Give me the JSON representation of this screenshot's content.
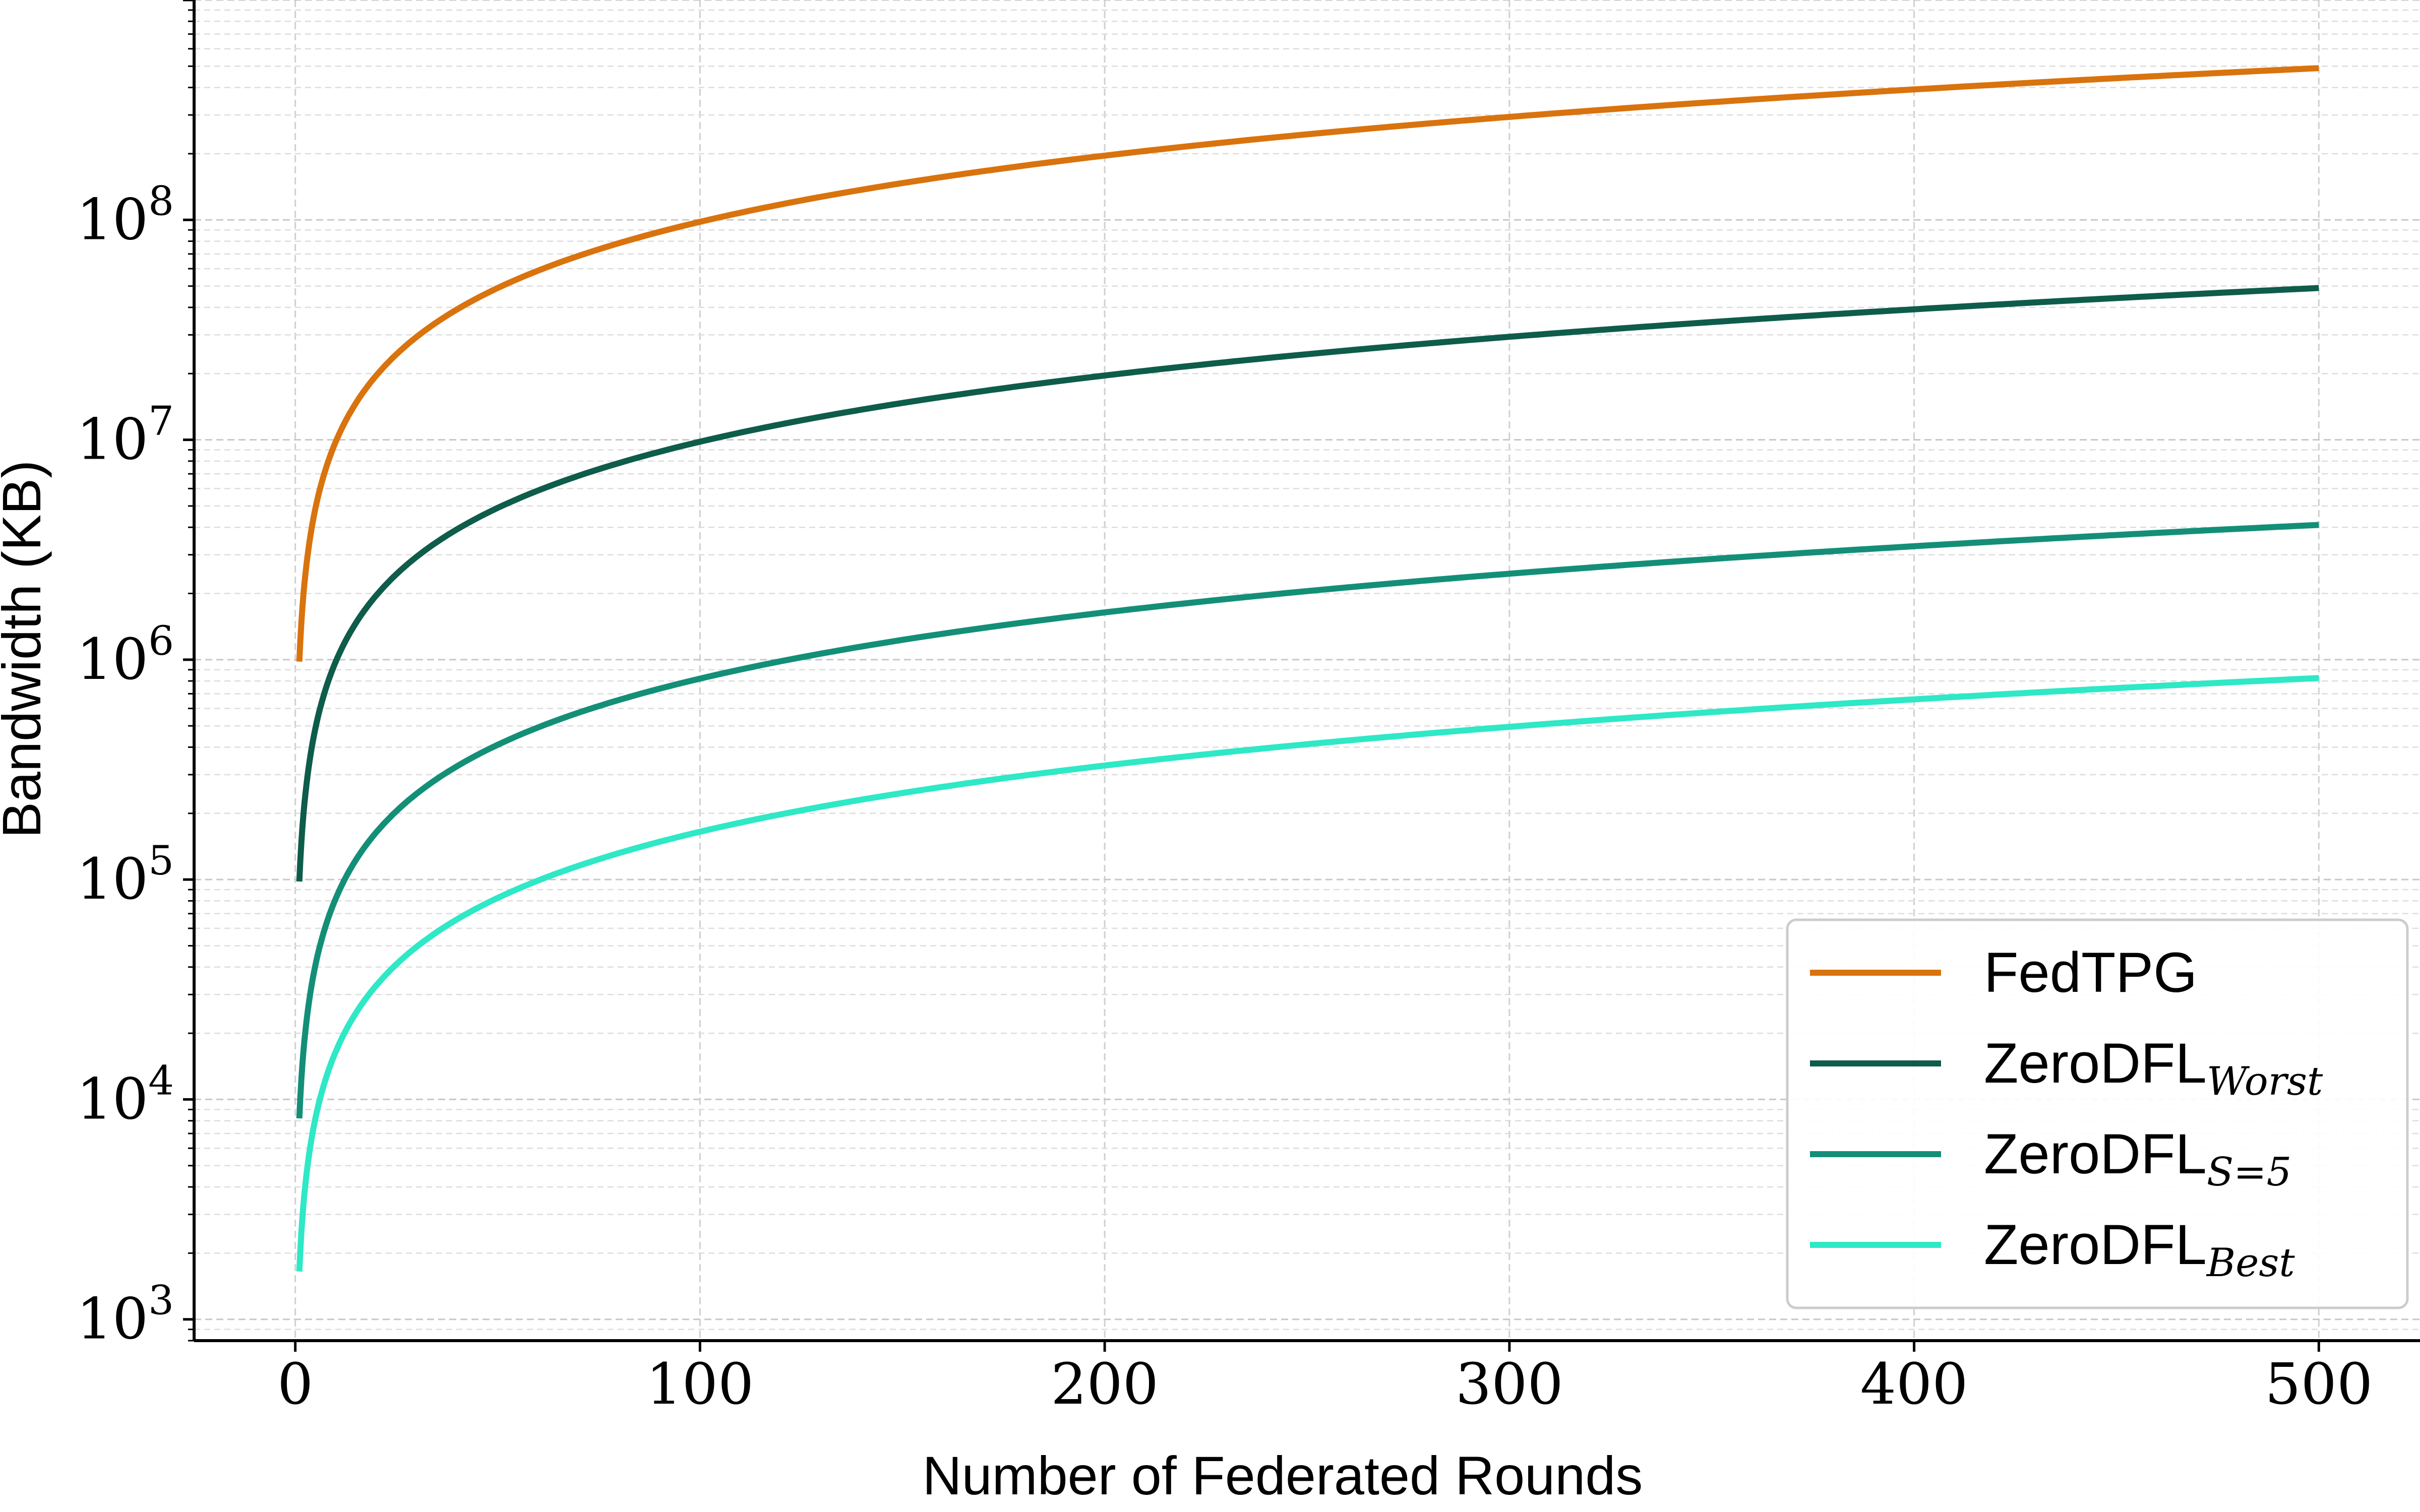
{
  "chart_data": {
    "type": "line",
    "title": "",
    "xlabel": "Number of Federated Rounds",
    "ylabel": "Bandwidth (KB)",
    "xlim": [
      -25,
      525
    ],
    "ylim": [
      800,
      1000000000
    ],
    "yscale": "log",
    "grid": true,
    "legend_position": "lower-right",
    "x_ticks": [
      {
        "value": 0,
        "label": "0"
      },
      {
        "value": 100,
        "label": "100"
      },
      {
        "value": 200,
        "label": "200"
      },
      {
        "value": 300,
        "label": "300"
      },
      {
        "value": 400,
        "label": "400"
      },
      {
        "value": 500,
        "label": "500"
      }
    ],
    "y_ticks": [
      {
        "value": 1000,
        "base": "10",
        "exp": "3"
      },
      {
        "value": 10000,
        "base": "10",
        "exp": "4"
      },
      {
        "value": 100000,
        "base": "10",
        "exp": "5"
      },
      {
        "value": 1000000,
        "base": "10",
        "exp": "6"
      },
      {
        "value": 10000000,
        "base": "10",
        "exp": "7"
      },
      {
        "value": 100000000,
        "base": "10",
        "exp": "8"
      }
    ],
    "series": [
      {
        "name": "FedTPG",
        "name_base": "FedTPG",
        "name_sub": "",
        "color": "#D9730D",
        "x": [
          1,
          2,
          5,
          10,
          20,
          50,
          100,
          150,
          200,
          250,
          300,
          350,
          400,
          450,
          500
        ],
        "y": [
          980000,
          1960000,
          4900000,
          9800000,
          19600000,
          49000000,
          98000000,
          147000000,
          196000000,
          245000000,
          294000000,
          343000000,
          392000000,
          441000000,
          490000000
        ]
      },
      {
        "name": "ZeroDFL_Worst",
        "name_base": "ZeroDFL",
        "name_sub": "Worst",
        "color": "#0E5C4A",
        "x": [
          1,
          2,
          5,
          10,
          20,
          50,
          100,
          150,
          200,
          250,
          300,
          350,
          400,
          450,
          500
        ],
        "y": [
          98000,
          196000,
          490000,
          980000,
          1960000,
          4900000,
          9800000,
          14700000,
          19600000,
          24500000,
          29400000,
          34300000,
          39200000,
          44100000,
          49000000
        ]
      },
      {
        "name": "ZeroDFL_S=5",
        "name_base": "ZeroDFL",
        "name_sub": "S=5",
        "color": "#138F78",
        "x": [
          1,
          2,
          5,
          10,
          20,
          50,
          100,
          150,
          200,
          250,
          300,
          350,
          400,
          450,
          500
        ],
        "y": [
          8200,
          16400,
          41000,
          82000,
          164000,
          410000,
          820000,
          1230000,
          1640000,
          2050000,
          2460000,
          2870000,
          3280000,
          3690000,
          4100000
        ]
      },
      {
        "name": "ZeroDFL_Best",
        "name_base": "ZeroDFL",
        "name_sub": "Best",
        "color": "#2EE8C6",
        "x": [
          1,
          2,
          5,
          10,
          20,
          50,
          100,
          150,
          200,
          250,
          300,
          350,
          400,
          450,
          500
        ],
        "y": [
          1650,
          3300,
          8250,
          16500,
          33000,
          82500,
          165000,
          247500,
          330000,
          412500,
          495000,
          577500,
          660000,
          742500,
          825000
        ]
      }
    ]
  }
}
